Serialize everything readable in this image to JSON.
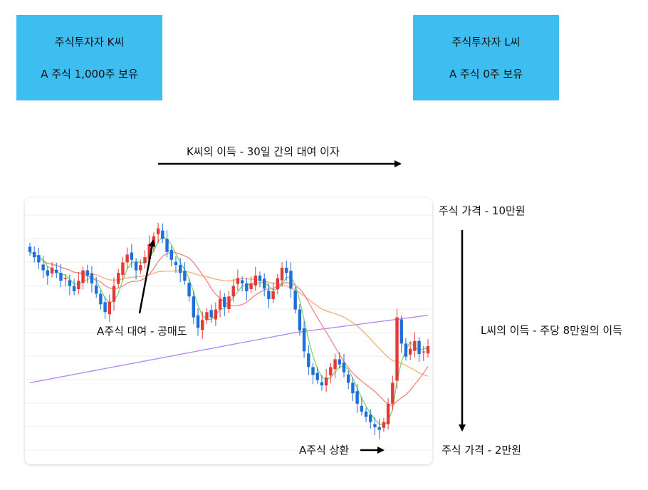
{
  "box_k": {
    "line1": "주식투자자 K씨",
    "line2": "A 주식 1,000주 보유"
  },
  "box_l": {
    "line1": "주식투자자 L씨",
    "line2": "A 주식 0주 보유"
  },
  "labels": {
    "k_profit": "K씨의 이득 - 30일 간의 대여 이자",
    "price_high": "주식 가격 - 10만원",
    "l_profit": "L씨의 이득 - 주당 8만원의 이득",
    "price_low": "주식 가격 - 2만원",
    "lend_short": "A주식 대여 - 공매도",
    "repay": "A주식 상환"
  },
  "colors": {
    "box": "#3dbdf0",
    "up": "#e53935",
    "down": "#1e6fd9",
    "ma_green": "#7dd87d",
    "ma_red": "#f08c8c",
    "ma_orange": "#f6b27a",
    "ma_purple": "#b68cf2"
  },
  "chart_data": {
    "type": "candlestick",
    "closes": [
      7.3,
      7.1,
      6.9,
      6.6,
      6.4,
      6.7,
      6.5,
      6.2,
      6.3,
      6.0,
      5.8,
      6.2,
      6.6,
      6.4,
      6.1,
      5.7,
      5.3,
      5.0,
      5.4,
      6.0,
      6.5,
      6.9,
      7.2,
      7.0,
      6.6,
      6.8,
      7.1,
      7.6,
      7.9,
      8.2,
      7.8,
      7.3,
      7.0,
      6.8,
      6.5,
      6.2,
      5.6,
      4.8,
      4.4,
      4.7,
      5.0,
      4.8,
      5.1,
      5.5,
      5.2,
      5.6,
      6.0,
      6.3,
      6.1,
      5.8,
      6.1,
      6.4,
      6.2,
      5.9,
      5.5,
      5.8,
      6.3,
      6.7,
      6.5,
      5.9,
      5.1,
      4.3,
      3.5,
      2.9,
      2.6,
      2.4,
      2.2,
      2.5,
      2.9,
      3.2,
      3.0,
      2.7,
      2.3,
      1.9,
      1.5,
      1.2,
      1.0,
      0.8,
      0.6,
      0.5,
      0.8,
      1.5,
      2.3,
      4.8,
      3.8,
      3.3,
      3.6,
      3.9,
      3.4,
      3.5,
      3.7
    ]
  }
}
